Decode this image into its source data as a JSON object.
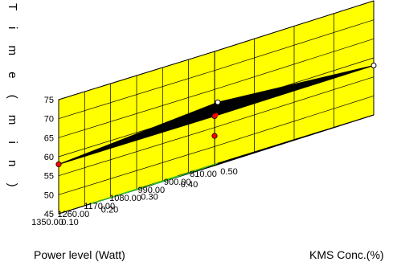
{
  "chart_data": {
    "type": "surface3d",
    "zlabel": "Time (min)",
    "zlabel_spaced": "T i m e ( m i n )",
    "xlabel": "KMS Conc.(%)",
    "ylabel": "Power level (Watt)",
    "x_ticks": [
      "0.10",
      "0.20",
      "0.30",
      "0.40",
      "0.50"
    ],
    "y_ticks": [
      "810.00",
      "900.00",
      "990.00",
      "1080.00",
      "1170.00",
      "1260.00",
      "1350.00"
    ],
    "z_ticks": [
      "45",
      "50",
      "55",
      "60",
      "65",
      "70",
      "75"
    ],
    "xlim": [
      0.1,
      0.5
    ],
    "ylim": [
      810,
      1350
    ],
    "zlim": [
      45,
      75
    ],
    "grid": true,
    "surface": {
      "corners": [
        {
          "x": 0.1,
          "y": 810,
          "z": 58
        },
        {
          "x": 0.5,
          "y": 810,
          "z": 58
        },
        {
          "x": 0.5,
          "y": 1350,
          "z": 61
        },
        {
          "x": 0.1,
          "y": 1350,
          "z": 58
        }
      ],
      "color": "#000000"
    },
    "design_points": [
      {
        "x": 0.1,
        "y": 810,
        "z": 58,
        "style": "filled-red"
      },
      {
        "x": 0.5,
        "y": 810,
        "z": 58,
        "style": "open"
      },
      {
        "x": 0.5,
        "y": 1350,
        "z": 61,
        "style": "open"
      },
      {
        "x": 0.1,
        "y": 1350,
        "z": 58,
        "style": "filled-red"
      },
      {
        "x": 0.3,
        "y": 1080,
        "z": 58,
        "style": "center-red"
      }
    ],
    "colors": {
      "walls": "#ffff00",
      "surface": "#000000",
      "contour": "#32cd32",
      "points": "#ff0000"
    }
  }
}
